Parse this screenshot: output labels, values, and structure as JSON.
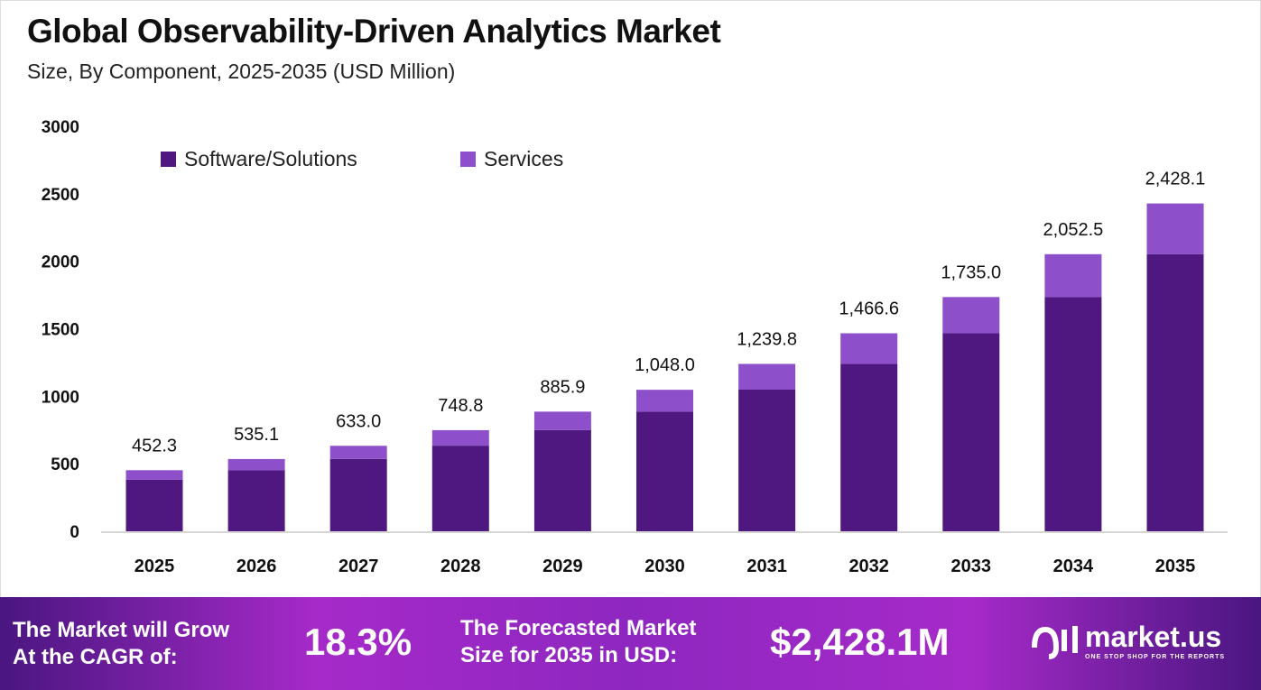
{
  "title": "Global Observability-Driven Analytics Market",
  "subtitle": "Size, By Component, 2025-2035 (USD Million)",
  "colors": {
    "software": "#4f1880",
    "services": "#8e4fcb"
  },
  "chart_data": {
    "type": "bar",
    "stacked": true,
    "categories": [
      "2025",
      "2026",
      "2027",
      "2028",
      "2029",
      "2030",
      "2031",
      "2032",
      "2033",
      "2034",
      "2035"
    ],
    "series": [
      {
        "name": "Software/Solutions",
        "values": [
          382,
          453,
          536,
          634,
          750,
          886,
          1049,
          1240,
          1467,
          1736,
          2053
        ]
      },
      {
        "name": "Services",
        "values": [
          70.3,
          82.1,
          97.0,
          114.8,
          135.9,
          162.0,
          190.8,
          226.6,
          268.0,
          316.5,
          375.1
        ]
      }
    ],
    "totals": [
      "452.3",
      "535.1",
      "633.0",
      "748.8",
      "885.9",
      "1,048.0",
      "1,239.8",
      "1,466.6",
      "1,735.0",
      "2,052.5",
      "2,428.1"
    ],
    "totals_values": [
      452.3,
      535.1,
      633.0,
      748.8,
      885.9,
      1048.0,
      1239.8,
      1466.6,
      1735.0,
      2052.5,
      2428.1
    ],
    "yticks": [
      "0",
      "500",
      "1000",
      "1500",
      "2000",
      "2500",
      "3000"
    ],
    "ylim": [
      0,
      3000
    ],
    "grid": false,
    "legend": "top-left"
  },
  "footer": {
    "cagr_label": [
      "The Market will Grow",
      "At the CAGR of:"
    ],
    "cagr_value": "18.3%",
    "forecast_label": [
      "The Forecasted Market",
      "Size for 2035 in USD:"
    ],
    "forecast_value": "$2,428.1M",
    "brand": "market.us",
    "tagline": "ONE STOP SHOP FOR THE REPORTS"
  }
}
